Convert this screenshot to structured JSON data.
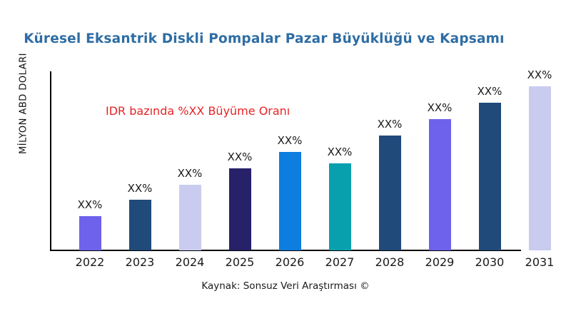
{
  "page": {
    "footer": "Kaynak: Sonsuz Veri Araştırması ©"
  },
  "annotation": {
    "text": "IDR bazında %XX Büyüme Oranı",
    "color": "#E62425"
  },
  "chart_data": {
    "type": "bar",
    "title": "Küresel Eksantrik Diskli Pompalar Pazar Büyüklüğü ve Kapsamı",
    "ylabel": "MİLYON ABD DOLARI",
    "xlabel": "",
    "categories": [
      "2022",
      "2023",
      "2024",
      "2025",
      "2026",
      "2027",
      "2028",
      "2029",
      "2030",
      "2031"
    ],
    "values": [
      21,
      31,
      40,
      50,
      60,
      53,
      70,
      80,
      90,
      100
    ],
    "value_labels": [
      "XX%",
      "XX%",
      "XX%",
      "XX%",
      "XX%",
      "XX%",
      "XX%",
      "XX%",
      "XX%",
      "XX%"
    ],
    "bar_colors": [
      "#6E62EC",
      "#1F4A7A",
      "#C9CBEF",
      "#262168",
      "#0E7DE0",
      "#09A0AE",
      "#1F4A7A",
      "#6E62EC",
      "#1F4A7A",
      "#C9CBEF"
    ],
    "ylim": [
      0,
      100
    ],
    "grid": false,
    "legend": false,
    "title_color": "#2E6DA4",
    "axis_color": "#000000",
    "annotation_text": "IDR bazında %XX Büyüme Oranı"
  }
}
